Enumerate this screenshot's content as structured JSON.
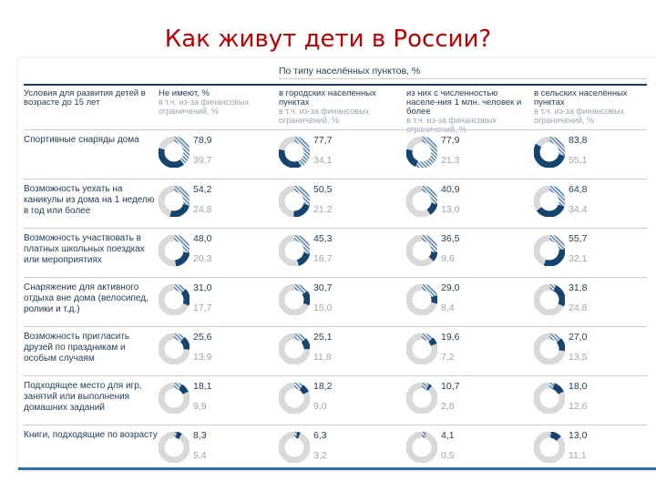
{
  "title": "Как живут дети в России?",
  "colors": {
    "primary": "#15456f",
    "hatch": "#5f86ad",
    "track": "#d9d9d9",
    "header": "#1f3a5a",
    "muted": "#9aa6b2",
    "title": "#c00000"
  },
  "chart_data": {
    "type": "table",
    "group_label": "По типу населённых пунктов, %",
    "row_header": "Условия для развития детей в возрасте до 15 лет",
    "columns": [
      {
        "name": "Не имеют, %",
        "sub": "в т.ч. из-за финансовых ограничений, %"
      },
      {
        "name": "в городских населенных пунктах",
        "sub": "в т.ч. из-за финансовых ограничений, %"
      },
      {
        "name": "из них с численностью населе-ния 1 млн. человек и более",
        "sub": "в т.ч. из-за финансовых ограничений, %"
      },
      {
        "name": "в сельских населённых пунктах",
        "sub": "в т.ч. из-за финансовых ограничений, %"
      }
    ],
    "rows": [
      {
        "label": "Спортивные снаряды дома",
        "values": [
          78.9,
          77.7,
          77.9,
          83.8
        ],
        "sub_values": [
          39.7,
          34.1,
          21.3,
          55.1
        ],
        "values_text": [
          "78,9",
          "77,7",
          "77,9",
          "83,8"
        ],
        "sub_text": [
          "39,7",
          "34,1",
          "21,3",
          "55,1"
        ]
      },
      {
        "label": "Возможность уехать на каникулы из дома на 1 неделю в год или более",
        "values": [
          54.2,
          50.5,
          40.9,
          64.8
        ],
        "sub_values": [
          24.8,
          21.2,
          13.0,
          34.4
        ],
        "values_text": [
          "54,2",
          "50,5",
          "40,9",
          "64,8"
        ],
        "sub_text": [
          "24,8",
          "21,2",
          "13,0",
          "34,4"
        ]
      },
      {
        "label": "Возможность участвовать в платных школьных поездках или мероприятиях",
        "values": [
          48.0,
          45.3,
          36.5,
          55.7
        ],
        "sub_values": [
          20.3,
          16.7,
          9.6,
          32.1
        ],
        "values_text": [
          "48,0",
          "45,3",
          "36,5",
          "55,7"
        ],
        "sub_text": [
          "20,3",
          "16,7",
          "9,6",
          "32,1"
        ]
      },
      {
        "label": "Снаряжение для активного отдыха вне дома (велосипед, ролики и т.д.)",
        "values": [
          31.0,
          30.7,
          29.0,
          31.8
        ],
        "sub_values": [
          17.7,
          15.0,
          8.4,
          24.8
        ],
        "values_text": [
          "31,0",
          "30,7",
          "29,0",
          "31,8"
        ],
        "sub_text": [
          "17,7",
          "15,0",
          "8,4",
          "24,8"
        ]
      },
      {
        "label": "Возможность пригласить друзей по праздникам и особым случаям",
        "values": [
          25.6,
          25.1,
          19.6,
          27.0
        ],
        "sub_values": [
          13.9,
          11.8,
          7.2,
          13.5
        ],
        "values_text": [
          "25,6",
          "25,1",
          "19,6",
          "27,0"
        ],
        "sub_text": [
          "13,9",
          "11,8",
          "7,2",
          "13,5"
        ]
      },
      {
        "label": "Подходящее место для игр, занятий или выполнения домашних заданий",
        "values": [
          18.1,
          18.2,
          10.7,
          18.0
        ],
        "sub_values": [
          9.9,
          9.0,
          2.8,
          12.6
        ],
        "values_text": [
          "18,1",
          "18,2",
          "10,7",
          "18,0"
        ],
        "sub_text": [
          "9,9",
          "9,0",
          "2,8",
          "12,6"
        ]
      },
      {
        "label": "Книги, подходящие по возрасту",
        "values": [
          8.3,
          6.3,
          4.1,
          13.0
        ],
        "sub_values": [
          5.4,
          3.2,
          0.5,
          11.1
        ],
        "values_text": [
          "8,3",
          "6,3",
          "4,1",
          "13,0"
        ],
        "sub_text": [
          "5,4",
          "3,2",
          "0,5",
          "11,1"
        ]
      }
    ]
  }
}
